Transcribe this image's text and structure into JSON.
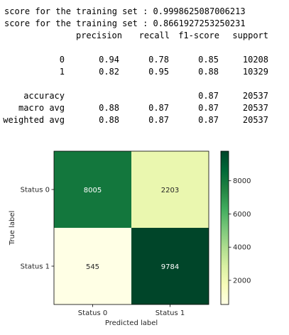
{
  "output": {
    "lines": [
      "score for the training set : 0.9998625087006213",
      "score for the training set : 0.8661927253250231"
    ],
    "report": {
      "header": [
        "precision",
        "recall",
        "f1-score",
        "support"
      ],
      "rows": [
        {
          "label": "0",
          "precision": "0.94",
          "recall": "0.78",
          "f1": "0.85",
          "support": "10208"
        },
        {
          "label": "1",
          "precision": "0.82",
          "recall": "0.95",
          "f1": "0.88",
          "support": "10329"
        },
        {
          "label": "accuracy",
          "precision": "",
          "recall": "",
          "f1": "0.87",
          "support": "20537"
        },
        {
          "label": "macro avg",
          "precision": "0.88",
          "recall": "0.87",
          "f1": "0.87",
          "support": "20537"
        },
        {
          "label": "weighted avg",
          "precision": "0.88",
          "recall": "0.87",
          "f1": "0.87",
          "support": "20537"
        }
      ]
    }
  },
  "chart_data": {
    "type": "heatmap",
    "title": "",
    "xlabel": "Predicted label",
    "ylabel": "True label",
    "x_categories": [
      "Status 0",
      "Status 1"
    ],
    "y_categories": [
      "Status 0",
      "Status 1"
    ],
    "values": [
      [
        8005,
        2203
      ],
      [
        545,
        9784
      ]
    ],
    "colormap": "YlGn",
    "colorbar": {
      "range": [
        545,
        9784
      ],
      "ticks": [
        2000,
        4000,
        6000,
        8000
      ]
    },
    "colors": {
      "ramp": [
        "#ffffe5",
        "#f7fcb9",
        "#d9f0a3",
        "#addd8e",
        "#78c679",
        "#41ab5d",
        "#238443",
        "#006837",
        "#004529"
      ],
      "text_dark": "#262626",
      "text_light": "#ffffff"
    }
  }
}
